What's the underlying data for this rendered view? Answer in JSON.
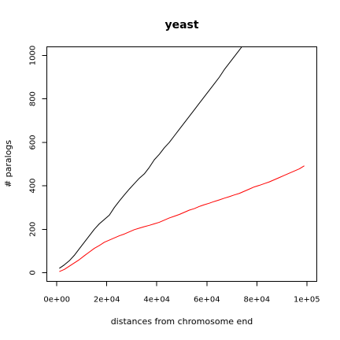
{
  "chart_data": {
    "type": "line",
    "title": "yeast",
    "xlabel": "distances from chromosome end",
    "ylabel": "# paralogs",
    "xlim": [
      -4000,
      104000
    ],
    "ylim": [
      -40,
      1040
    ],
    "x_ticks": [
      0,
      20000,
      40000,
      60000,
      80000,
      100000
    ],
    "x_tick_labels": [
      "0e+00",
      "2e+04",
      "4e+04",
      "6e+04",
      "8e+04",
      "1e+05"
    ],
    "y_ticks": [
      0,
      200,
      400,
      600,
      800,
      1000
    ],
    "y_tick_labels": [
      "0",
      "200",
      "400",
      "600",
      "800",
      "1000"
    ],
    "grid": false,
    "series": [
      {
        "color": "#000000",
        "x": [
          1000,
          3000,
          5000,
          7000,
          9000,
          11000,
          13000,
          15000,
          17000,
          19000,
          21000,
          23000,
          25000,
          27000,
          29000,
          31000,
          33000,
          35000,
          37000,
          39000,
          41000,
          43000,
          45000,
          47000,
          49000,
          51000,
          53000,
          55000,
          57000,
          59000,
          61000,
          63000,
          65000,
          67000,
          69000,
          71000,
          73000,
          74000
        ],
        "values": [
          20,
          36,
          55,
          80,
          110,
          140,
          170,
          200,
          225,
          245,
          265,
          300,
          330,
          358,
          385,
          410,
          435,
          455,
          485,
          520,
          545,
          575,
          600,
          630,
          660,
          690,
          720,
          750,
          780,
          810,
          840,
          870,
          900,
          935,
          965,
          995,
          1025,
          1040
        ]
      },
      {
        "color": "#ff0000",
        "x": [
          1000,
          3000,
          5000,
          7000,
          9000,
          11000,
          13000,
          15000,
          17000,
          19000,
          21000,
          23000,
          25000,
          27000,
          29000,
          31000,
          33000,
          35000,
          37000,
          39000,
          41000,
          43000,
          45000,
          47000,
          49000,
          51000,
          53000,
          55000,
          57000,
          59000,
          61000,
          63000,
          65000,
          67000,
          69000,
          71000,
          73000,
          75000,
          77000,
          79000,
          81000,
          83000,
          85000,
          87000,
          89000,
          91000,
          93000,
          95000,
          97000,
          99000
        ],
        "values": [
          5,
          15,
          30,
          45,
          60,
          78,
          95,
          112,
          125,
          140,
          150,
          160,
          170,
          178,
          188,
          198,
          205,
          212,
          218,
          225,
          232,
          242,
          252,
          260,
          268,
          278,
          288,
          295,
          305,
          313,
          320,
          328,
          335,
          343,
          350,
          358,
          365,
          375,
          385,
          395,
          402,
          410,
          418,
          428,
          438,
          448,
          458,
          468,
          478,
          492
        ]
      }
    ]
  }
}
